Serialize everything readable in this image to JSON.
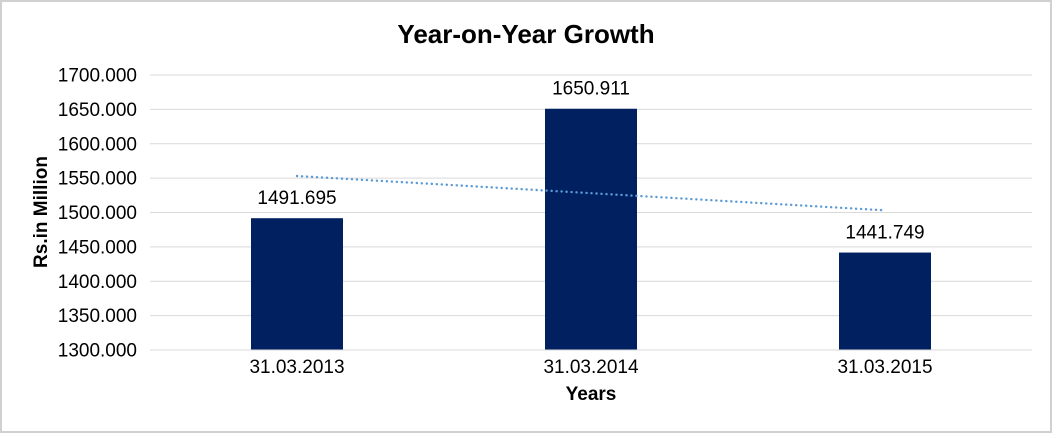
{
  "chart_data": {
    "type": "bar",
    "title": "Year-on-Year Growth",
    "xlabel": "Years",
    "ylabel": "Rs.in Million",
    "categories": [
      "31.03.2013",
      "31.03.2014",
      "31.03.2015"
    ],
    "values": [
      1491.695,
      1650.911,
      1441.749
    ],
    "data_labels": [
      "1491.695",
      "1650.911",
      "1441.749"
    ],
    "ylim": [
      1300,
      1700
    ],
    "ytick_step": 50,
    "ytick_labels": [
      "1700.000",
      "1650.000",
      "1600.000",
      "1550.000",
      "1500.000",
      "1450.000",
      "1400.000",
      "1350.000",
      "1300.000"
    ],
    "grid": true,
    "legend": false,
    "colors": {
      "bar": "#002060",
      "trendline": "#5B9BD5",
      "gridline": "#D9D9D9",
      "axis_line": "#D9D9D9",
      "text": "#000000"
    },
    "trendline": {
      "type": "linear",
      "style": "dotted",
      "start_value": 1553.091,
      "end_value": 1503.145
    }
  }
}
